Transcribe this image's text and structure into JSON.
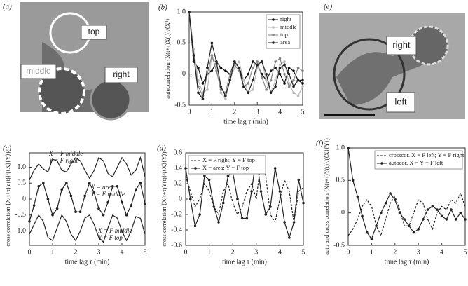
{
  "images": [
    {
      "panel": "(a)",
      "labels": [
        "top",
        "middle",
        "right"
      ]
    },
    {
      "panel": "(e)",
      "labels": [
        "right",
        "left"
      ]
    }
  ],
  "chart_data": [
    {
      "type": "line",
      "panel": "(b)",
      "xlabel": "time lag τ (min)",
      "ylabel": "autocorrelation ⟨X(t+τ)X(t)⟩/⟨X²⟩",
      "x": [
        0,
        0.2,
        0.4,
        0.6,
        0.8,
        1,
        1.2,
        1.4,
        1.6,
        1.8,
        2,
        2.2,
        2.4,
        2.6,
        2.8,
        3,
        3.2,
        3.4,
        3.6,
        3.8,
        4,
        4.2,
        4.4,
        4.6,
        4.8,
        5
      ],
      "xlim": [
        0,
        5
      ],
      "xticks": [
        0,
        1,
        2,
        3,
        4,
        5
      ],
      "ylim": [
        -0.5,
        1
      ],
      "yticks": [
        -0.5,
        0,
        0.5,
        {
          "value": 1,
          "label": "1.0"
        }
      ],
      "legend": "upper right",
      "series": [
        {
          "name": "right",
          "color": "#111",
          "marker": true,
          "dashed": false,
          "values": [
            1,
            0.2,
            0.1,
            -0.15,
            0,
            0.05,
            0.2,
            0.1,
            0.05,
            0,
            0.2,
            0.1,
            -0.1,
            0,
            0.2,
            0.15,
            0,
            -0.1,
            0.05,
            0.1,
            0,
            -0.15,
            0.1,
            0.05,
            -0.1,
            -0.15
          ]
        },
        {
          "name": "middle",
          "color": "#bbb",
          "marker": true,
          "dashed": false,
          "values": [
            1,
            0.4,
            -0.1,
            -0.3,
            -0.25,
            0.3,
            0.15,
            -0.3,
            -0.4,
            -0.1,
            0.1,
            0.2,
            -0.1,
            -0.3,
            -0.25,
            0.1,
            0.2,
            -0.1,
            -0.3,
            -0.1,
            0.15,
            0.2,
            -0.15,
            -0.3,
            -0.35,
            -0.2
          ]
        },
        {
          "name": "top",
          "color": "#888",
          "marker": true,
          "dashed": false,
          "values": [
            1,
            0.3,
            -0.2,
            -0.35,
            0,
            0.3,
            0.05,
            -0.25,
            -0.3,
            0,
            0.15,
            0.05,
            -0.2,
            -0.15,
            0.1,
            0.2,
            -0.05,
            -0.25,
            -0.1,
            0.2,
            0.25,
            0,
            -0.2,
            -0.1,
            0.1,
            0.05
          ]
        },
        {
          "name": "area",
          "color": "#222",
          "marker": true,
          "dashed": false,
          "values": [
            1,
            0.3,
            -0.3,
            -0.4,
            0.1,
            0.5,
            0.2,
            -0.2,
            -0.35,
            -0.1,
            0.2,
            0.1,
            -0.2,
            -0.3,
            -0.1,
            0.15,
            0.2,
            0,
            -0.3,
            -0.2,
            0.1,
            0.15,
            0,
            -0.2,
            -0.1,
            -0.1
          ]
        }
      ]
    },
    {
      "type": "line",
      "panel": "(c)",
      "xlabel": "time lag τ (min)",
      "ylabel": "cross correlation ⟨X(t+τ)Y(t)⟩/(⟨X⟩⟨Y⟩)",
      "x": [
        0,
        0.2,
        0.4,
        0.6,
        0.8,
        1,
        1.2,
        1.4,
        1.6,
        1.8,
        2,
        2.2,
        2.4,
        2.6,
        2.8,
        3,
        3.2,
        3.4,
        3.6,
        3.8,
        4,
        4.2,
        4.4,
        4.6,
        4.8,
        5
      ],
      "xlim": [
        0,
        5
      ],
      "xticks": [
        0,
        1,
        2,
        3,
        4,
        5
      ],
      "ylim": [
        -1.45,
        1.45
      ],
      "yticks": [
        {
          "value": -1,
          "label": "-1.0"
        },
        -0.5,
        0,
        0.5,
        {
          "value": 1,
          "label": "1.0"
        }
      ],
      "series": [
        {
          "annotation": [
            "X = F middle",
            "Y = F right"
          ],
          "color": "#222",
          "marker": false,
          "dashed": false,
          "values": [
            0.6,
            0.9,
            1.1,
            0.95,
            0.85,
            1.25,
            1.2,
            0.9,
            0.85,
            1.1,
            1.3,
            1.2,
            0.9,
            0.65,
            0.9,
            1.3,
            1.2,
            0.8,
            0.7,
            1.0,
            1.3,
            1.1,
            0.75,
            0.9,
            1.3,
            0.7
          ]
        },
        {
          "annotation": [
            "X = area",
            "Y = F middle"
          ],
          "color": "#222",
          "marker": true,
          "dashed": false,
          "values": [
            -0.7,
            -0.2,
            0.4,
            0.5,
            0,
            -0.5,
            -0.3,
            0.3,
            0.5,
            0.1,
            -0.4,
            -0.4,
            0.1,
            0.5,
            0.2,
            -0.3,
            -0.5,
            -0.1,
            0.4,
            0.4,
            -0.1,
            -0.5,
            -0.2,
            0.3,
            0.5,
            -0.15
          ]
        },
        {
          "annotation": [
            "X = F middle",
            "Y = F top"
          ],
          "color": "#222",
          "marker": false,
          "dashed": false,
          "values": [
            -1.1,
            -0.8,
            -0.5,
            -0.7,
            -1.2,
            -1.3,
            -0.9,
            -0.5,
            -0.7,
            -1.1,
            -1.3,
            -1.0,
            -0.6,
            -0.5,
            -0.8,
            -1.2,
            -1.35,
            -0.9,
            -0.5,
            -0.6,
            -1.0,
            -1.3,
            -1.0,
            -0.55,
            -0.6,
            -1.1
          ]
        }
      ]
    },
    {
      "type": "line",
      "panel": "(d)",
      "xlabel": "time lag τ (min)",
      "ylabel": "cross correlation ⟨X(t+τ)Y(t)⟩/(⟨X⟩⟨Y⟩)",
      "x": [
        0,
        0.2,
        0.4,
        0.6,
        0.8,
        1,
        1.2,
        1.4,
        1.6,
        1.8,
        2,
        2.2,
        2.4,
        2.6,
        2.8,
        3,
        3.2,
        3.4,
        3.6,
        3.8,
        4,
        4.2,
        4.4,
        4.6,
        4.8,
        5
      ],
      "xlim": [
        0,
        5
      ],
      "xticks": [
        0,
        1,
        2,
        3,
        4,
        5
      ],
      "ylim": [
        -0.6,
        0.6
      ],
      "yticks": [
        -0.6,
        -0.4,
        -0.2,
        0,
        0.2,
        0.4,
        0.6
      ],
      "legend": "upper left",
      "series": [
        {
          "name": "X = F right; Y = F top",
          "color": "#222",
          "marker": false,
          "dashed": true,
          "values": [
            0.3,
            0.1,
            -0.1,
            0,
            0.2,
            0.1,
            -0.1,
            -0.2,
            0.1,
            0.2,
            -0.05,
            -0.2,
            -0.1,
            0.1,
            0.2,
            0,
            0.5,
            0.3,
            -0.2,
            -0.3,
            0,
            0.25,
            0.1,
            -0.3,
            0.1,
            0.15
          ]
        },
        {
          "name": "X = area; Y = F top",
          "color": "#222",
          "marker": true,
          "dashed": false,
          "values": [
            0.4,
            0,
            -0.35,
            -0.2,
            0.3,
            0.25,
            -0.1,
            -0.3,
            -0.05,
            0.3,
            0.35,
            0,
            -0.25,
            -0.25,
            0.1,
            0.55,
            0.1,
            -0.2,
            -0.1,
            0.4,
            0.1,
            -0.3,
            -0.5,
            -0.3,
            0.25,
            -0.05
          ]
        }
      ]
    },
    {
      "type": "line",
      "panel": "(f)",
      "xlabel": "time lag τ (min)",
      "ylabel": "auto and cross correlation ⟨X(t+τ)Y(t)⟩/(⟨X⟩⟨Y⟩)",
      "x": [
        0,
        0.2,
        0.4,
        0.6,
        0.8,
        1,
        1.2,
        1.4,
        1.6,
        1.8,
        2,
        2.2,
        2.4,
        2.6,
        2.8,
        3,
        3.2,
        3.4,
        3.6,
        3.8,
        4,
        4.2,
        4.4,
        4.6,
        4.8,
        5
      ],
      "xlim": [
        0,
        5
      ],
      "xticks": [
        0,
        1,
        2,
        3,
        4,
        5
      ],
      "ylim": [
        -0.5,
        1
      ],
      "yticks": [
        -0.5,
        0,
        0.5,
        {
          "value": 1,
          "label": "1.0"
        }
      ],
      "legend": "upper right",
      "series": [
        {
          "name": "crosscor. X = F left; Y = F right",
          "color": "#222",
          "marker": false,
          "dashed": true,
          "values": [
            -0.35,
            -0.25,
            -0.1,
            0.1,
            0.2,
            0.1,
            -0.2,
            -0.35,
            -0.1,
            0.15,
            0.25,
            0.05,
            -0.2,
            -0.2,
            0,
            0.2,
            0.15,
            -0.1,
            -0.25,
            0,
            0.1,
            0.05,
            0.2,
            0.15,
            0.3,
            0.1
          ]
        },
        {
          "name": "autocor. X = Y = F left",
          "color": "#222",
          "marker": true,
          "dashed": false,
          "values": [
            1,
            0.5,
            0.25,
            -0.05,
            -0.3,
            -0.4,
            -0.2,
            0,
            0.15,
            0.3,
            0.2,
            0,
            -0.1,
            -0.2,
            -0.3,
            -0.25,
            -0.1,
            0.05,
            0.1,
            0.05,
            -0.05,
            -0.1,
            0.05,
            -0.1,
            0,
            -0.1
          ]
        }
      ]
    }
  ]
}
